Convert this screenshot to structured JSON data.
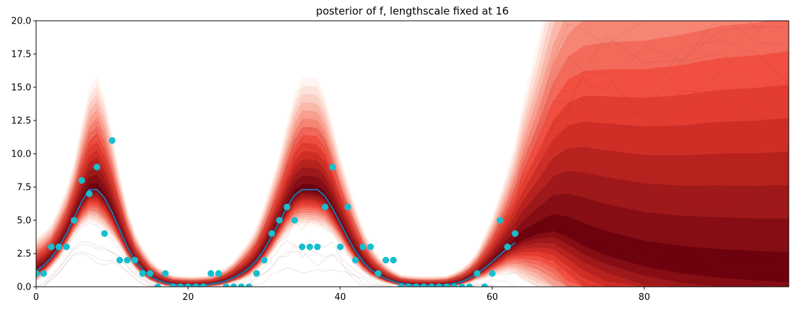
{
  "chart_data": {
    "type": "line",
    "title": "posterior of f, lengthscale fixed at 16",
    "xlabel": "",
    "ylabel": "",
    "xlim": [
      0,
      99
    ],
    "ylim": [
      0,
      20
    ],
    "x_ticks": [
      "0",
      "20",
      "40",
      "60",
      "80"
    ],
    "y_ticks": [
      "0.0",
      "2.5",
      "5.0",
      "7.5",
      "10.0",
      "12.5",
      "15.0",
      "17.5",
      "20.0"
    ],
    "grid": false,
    "legend": "none",
    "colors": {
      "observations": "#17becf",
      "posterior_mean": "#1f77b4",
      "density_dark": "#67000d",
      "density_mid": "#ef3b2c",
      "density_light": "#fee0d2",
      "sample_paths": "#7a3030"
    },
    "series": [
      {
        "type": "scatter",
        "x": [
          0,
          1,
          2,
          3,
          4,
          5,
          6,
          7,
          8,
          9,
          10,
          11,
          12,
          13,
          14,
          15,
          16,
          17,
          18,
          19,
          20,
          21,
          22,
          23,
          24,
          25,
          26,
          27,
          28,
          29,
          30,
          31,
          32,
          33,
          34,
          35,
          36,
          37,
          38,
          39,
          40,
          41,
          42,
          43,
          44,
          45,
          46,
          47,
          48,
          49,
          50,
          51,
          52,
          53,
          54,
          55,
          56,
          57,
          58,
          59,
          60,
          61,
          62,
          63
        ],
        "y": [
          1,
          1,
          3,
          3,
          3,
          5,
          8,
          7,
          9,
          4,
          11,
          2,
          2,
          2,
          1,
          1,
          0,
          1,
          0,
          0,
          0,
          0,
          0,
          1,
          1,
          0,
          0,
          0,
          0,
          1,
          2,
          4,
          5,
          6,
          5,
          3,
          3,
          3,
          6,
          9,
          3,
          6,
          2,
          3,
          3,
          1,
          2,
          2,
          0,
          0,
          0,
          0,
          0,
          0,
          0,
          0,
          0,
          0,
          1,
          0,
          1,
          5,
          3,
          4
        ]
      },
      {
        "type": "line",
        "x": [
          0,
          1,
          2,
          3,
          4,
          5,
          6,
          7,
          8,
          9,
          10,
          11,
          12,
          13,
          14,
          15,
          16,
          17,
          18,
          19,
          20,
          21,
          22,
          23,
          24,
          25,
          26,
          27,
          28,
          29,
          30,
          31,
          32,
          33,
          34,
          35,
          36,
          37,
          38,
          39,
          40,
          41,
          42,
          43,
          44,
          45,
          46,
          47,
          48,
          49,
          50,
          51,
          52,
          53,
          54,
          55,
          56,
          57,
          58,
          59,
          60,
          61,
          62,
          63
        ],
        "y": [
          1.2,
          1.6,
          2.2,
          3.0,
          4.0,
          5.2,
          6.4,
          7.3,
          7.3,
          6.7,
          5.6,
          4.3,
          3.0,
          2.0,
          1.3,
          0.8,
          0.5,
          0.3,
          0.2,
          0.15,
          0.12,
          0.12,
          0.15,
          0.2,
          0.3,
          0.45,
          0.7,
          1.0,
          1.4,
          2.0,
          2.8,
          3.8,
          4.9,
          6.0,
          6.9,
          7.3,
          7.3,
          7.3,
          6.8,
          5.9,
          4.8,
          3.7,
          2.7,
          1.9,
          1.3,
          0.9,
          0.6,
          0.4,
          0.25,
          0.18,
          0.13,
          0.12,
          0.12,
          0.13,
          0.17,
          0.25,
          0.4,
          0.65,
          1.0,
          1.4,
          1.9,
          2.4,
          2.9,
          3.3
        ]
      }
    ],
    "density_curve": {
      "x": [
        0,
        1,
        2,
        3,
        4,
        5,
        6,
        7,
        8,
        9,
        10,
        11,
        12,
        13,
        14,
        15,
        16,
        17,
        18,
        19,
        20,
        21,
        22,
        23,
        24,
        25,
        26,
        27,
        28,
        29,
        30,
        31,
        32,
        33,
        34,
        35,
        36,
        37,
        38,
        39,
        40,
        41,
        42,
        43,
        44,
        45,
        46,
        47,
        48,
        49,
        50,
        51,
        52,
        53,
        54,
        55,
        56,
        57,
        58,
        59,
        60,
        61,
        62,
        63,
        64,
        66,
        68,
        70,
        72,
        75,
        80,
        85,
        90,
        95,
        99
      ],
      "center": [
        1.2,
        1.6,
        2.2,
        3.0,
        4.0,
        5.2,
        6.4,
        7.3,
        7.4,
        6.7,
        5.6,
        4.3,
        3.0,
        2.0,
        1.3,
        0.8,
        0.5,
        0.3,
        0.2,
        0.15,
        0.12,
        0.12,
        0.15,
        0.2,
        0.3,
        0.45,
        0.7,
        1.0,
        1.4,
        2.0,
        2.8,
        3.8,
        4.9,
        6.0,
        6.9,
        7.3,
        7.3,
        7.2,
        6.8,
        5.9,
        4.8,
        3.7,
        2.7,
        1.9,
        1.3,
        0.9,
        0.6,
        0.4,
        0.25,
        0.18,
        0.13,
        0.12,
        0.12,
        0.13,
        0.17,
        0.25,
        0.4,
        0.65,
        1.0,
        1.4,
        1.9,
        2.4,
        2.9,
        3.3,
        3.7,
        4.2,
        4.5,
        4.1,
        3.5,
        2.8,
        2.0,
        1.5,
        1.2,
        1.0,
        0.9
      ],
      "spread": [
        0.3,
        0.3,
        0.3,
        0.35,
        0.4,
        0.5,
        0.7,
        0.9,
        1.0,
        0.9,
        0.7,
        0.5,
        0.35,
        0.25,
        0.2,
        0.15,
        0.12,
        0.1,
        0.08,
        0.08,
        0.08,
        0.08,
        0.08,
        0.08,
        0.1,
        0.12,
        0.15,
        0.2,
        0.25,
        0.3,
        0.4,
        0.5,
        0.6,
        0.75,
        0.9,
        1.0,
        1.0,
        1.0,
        0.9,
        0.75,
        0.6,
        0.5,
        0.4,
        0.3,
        0.22,
        0.17,
        0.13,
        0.1,
        0.08,
        0.08,
        0.08,
        0.08,
        0.08,
        0.08,
        0.08,
        0.1,
        0.12,
        0.15,
        0.2,
        0.3,
        0.4,
        0.55,
        0.7,
        0.9,
        1.2,
        1.7,
        2.3,
        2.8,
        3.1,
        3.3,
        3.5,
        3.7,
        3.9,
        4.0,
        4.1
      ]
    }
  }
}
